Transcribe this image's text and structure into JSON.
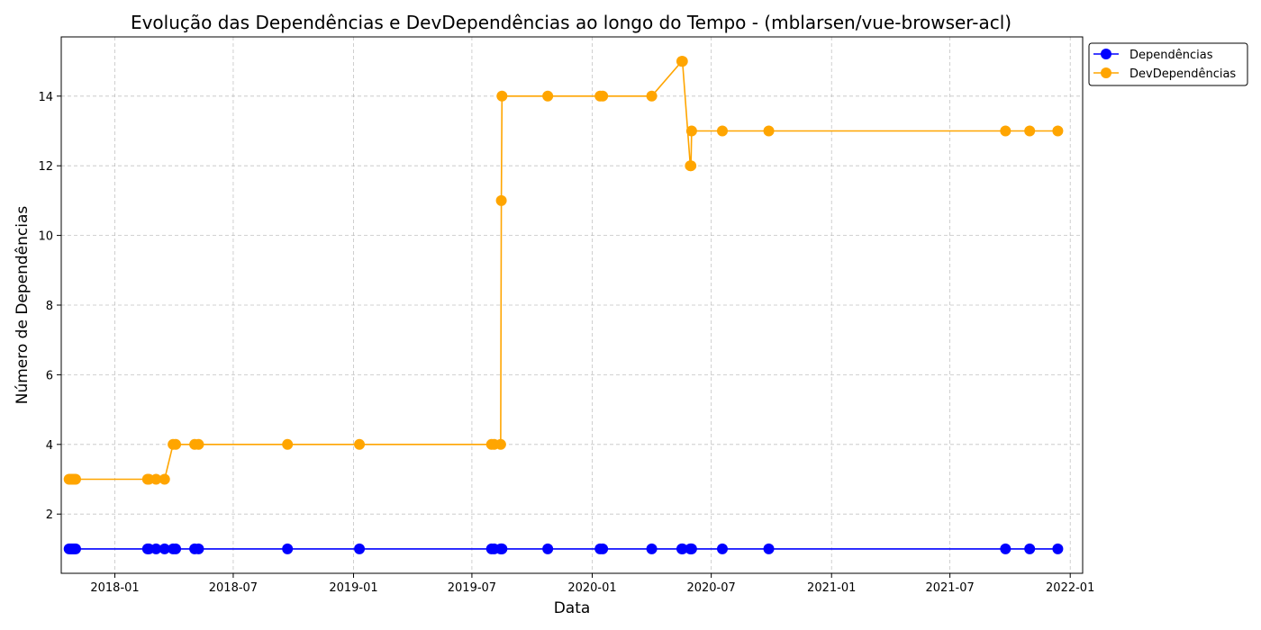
{
  "chart_data": {
    "type": "line",
    "title": "Evolução das Dependências e DevDependências ao longo do Tempo - (mblarsen/vue-browser-acl)",
    "xlabel": "Data",
    "ylabel": "Número de Dependências",
    "x_ticks": [
      "2018-01",
      "2018-07",
      "2019-01",
      "2019-07",
      "2020-01",
      "2020-07",
      "2021-01",
      "2021-07",
      "2022-01"
    ],
    "y_ticks": [
      2,
      4,
      6,
      8,
      10,
      12,
      14
    ],
    "xlim": [
      "2017-10-11",
      "2022-01-20"
    ],
    "ylim": [
      0.3,
      15.7
    ],
    "grid": true,
    "legend_position": "upper right, outside plot area",
    "x": [
      "2017-10-23",
      "2017-10-25",
      "2017-10-27",
      "2017-10-29",
      "2017-10-31",
      "2017-11-02",
      "2018-02-20",
      "2018-02-22",
      "2018-03-05",
      "2018-03-18",
      "2018-03-31",
      "2018-04-04",
      "2018-05-03",
      "2018-05-09",
      "2018-09-22",
      "2019-01-10",
      "2019-07-31",
      "2019-08-04",
      "2019-08-14",
      "2019-08-15",
      "2019-08-16",
      "2019-10-25",
      "2020-01-13",
      "2020-01-17",
      "2020-04-01",
      "2020-05-17",
      "2020-05-18",
      "2020-05-30",
      "2020-05-31",
      "2020-06-01",
      "2020-07-18",
      "2020-09-27",
      "2021-09-24",
      "2021-10-31",
      "2021-12-13"
    ],
    "series": [
      {
        "name": "Dependências",
        "color": "#0000ff",
        "values": [
          1,
          1,
          1,
          1,
          1,
          1,
          1,
          1,
          1,
          1,
          1,
          1,
          1,
          1,
          1,
          1,
          1,
          1,
          1,
          1,
          1,
          1,
          1,
          1,
          1,
          1,
          1,
          1,
          1,
          1,
          1,
          1,
          1,
          1,
          1
        ]
      },
      {
        "name": "DevDependências",
        "color": "#ffa500",
        "values": [
          3,
          3,
          3,
          3,
          3,
          3,
          3,
          3,
          3,
          3,
          4,
          4,
          4,
          4,
          4,
          4,
          4,
          4,
          4,
          11,
          14,
          14,
          14,
          14,
          14,
          15,
          15,
          12,
          12,
          13,
          13,
          13,
          13,
          13,
          13
        ]
      }
    ]
  }
}
